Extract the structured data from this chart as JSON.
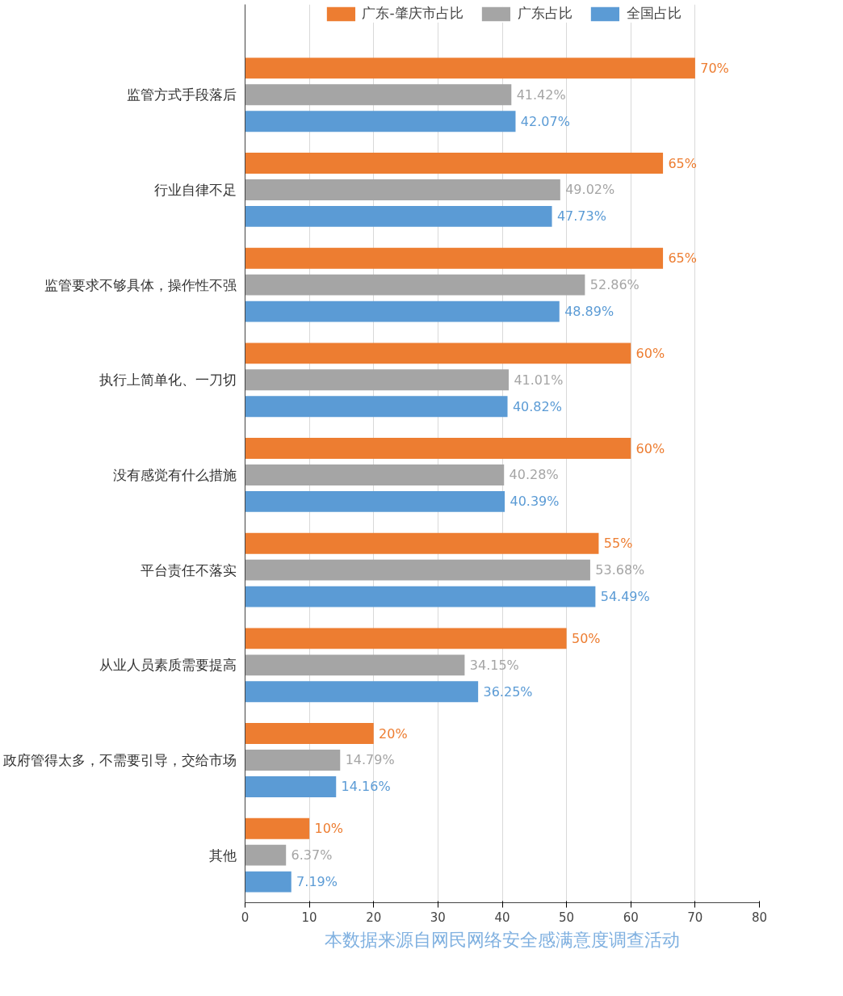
{
  "chart_data": {
    "type": "bar",
    "orientation": "horizontal",
    "legend": "top",
    "grid": "x",
    "categories": [
      "监管方式手段落后",
      "行业自律不足",
      "监管要求不够具体，操作性不强",
      "执行上简单化、一刀切",
      "没有感觉有什么措施",
      "平台责任不落实",
      "从业人员素质需要提高",
      "政府管得太多，不需要引导，交给市场",
      "其他"
    ],
    "series": [
      {
        "name": "广东-肇庆市占比",
        "color": "#ed7d31",
        "values": [
          70,
          65,
          65,
          60,
          60,
          55,
          50,
          20,
          10
        ],
        "value_labels": [
          "70%",
          "65%",
          "65%",
          "60%",
          "60%",
          "55%",
          "50%",
          "20%",
          "10%"
        ]
      },
      {
        "name": "广东占比",
        "color": "#a5a5a5",
        "values": [
          41.42,
          49.02,
          52.86,
          41.01,
          40.28,
          53.68,
          34.15,
          14.79,
          6.37
        ],
        "value_labels": [
          "41.42%",
          "49.02%",
          "52.86%",
          "41.01%",
          "40.28%",
          "53.68%",
          "34.15%",
          "14.79%",
          "6.37%"
        ]
      },
      {
        "name": "全国占比",
        "color": "#5b9bd5",
        "values": [
          42.07,
          47.73,
          48.89,
          40.82,
          40.39,
          54.49,
          36.25,
          14.16,
          7.19
        ],
        "value_labels": [
          "42.07%",
          "47.73%",
          "48.89%",
          "40.82%",
          "40.39%",
          "54.49%",
          "36.25%",
          "14.16%",
          "7.19%"
        ]
      }
    ],
    "xlim": [
      0,
      80
    ],
    "xticks": [
      0,
      10,
      20,
      30,
      40,
      50,
      60,
      70,
      80
    ],
    "annotations": [
      "本数据来源自网民网络安全感满意度调查活动"
    ]
  }
}
